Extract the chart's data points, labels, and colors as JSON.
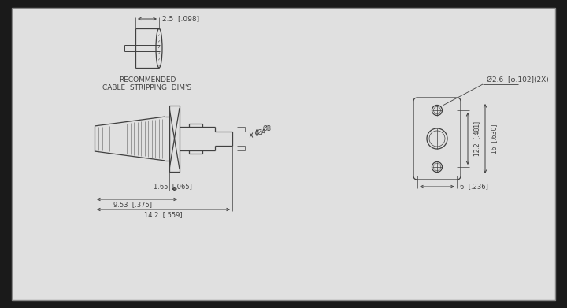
{
  "bg_color": "#1a1a1a",
  "drawing_bg": "#e0e0e0",
  "line_color": "#404040",
  "text_color": "#404040",
  "cable_strip_label_line1": "RECOMMENDED",
  "cable_strip_label_line2": "CABLE  STRIPPING  DIM'S",
  "dim_25_label": "2.5  [.098]",
  "dim_165_label": "1.65  [.065]",
  "dim_953_label": "9.53  [.375]",
  "dim_142_label": "14.2  [.559]",
  "dim_phiA_label": "ØA",
  "dim_phiB_label": "ØB",
  "dim_phi26_label": "Ø2.6  [φ.102](2X)",
  "dim_122_label": "12.2  [.481]",
  "dim_16_label": "16  [.630]",
  "dim_6_label": "6  [.236]"
}
